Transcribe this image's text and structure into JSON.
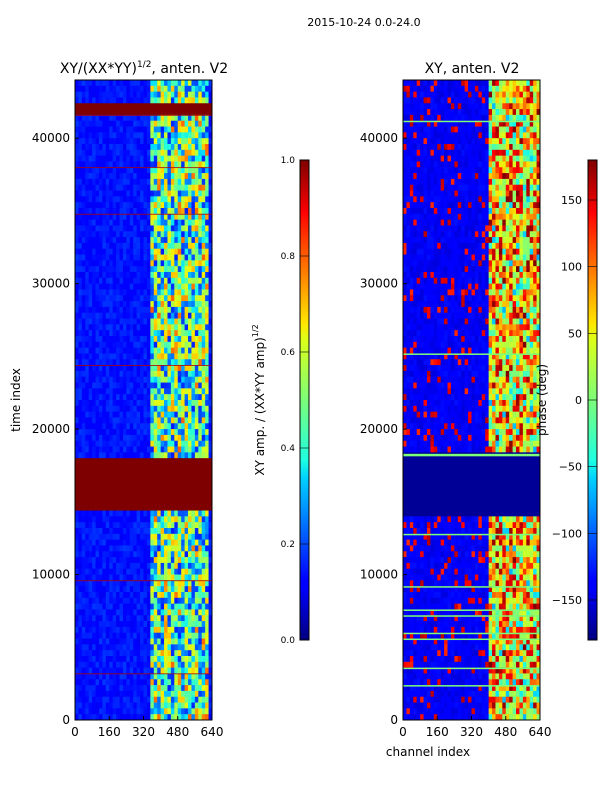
{
  "suptitle": "2015-10-24 0.0-24.0",
  "chart_data": [
    {
      "type": "heatmap",
      "title": "XY/(XX*YY)^(1/2), anten. V2",
      "title_main": "XY/(XX*YY)",
      "title_exp": "1/2",
      "title_tail": ", anten. V2",
      "xlabel": "",
      "ylabel": "time index",
      "xlim": [
        0,
        640
      ],
      "ylim": [
        0,
        44000
      ],
      "xticks": [
        0,
        160,
        320,
        480,
        640
      ],
      "yticks": [
        0,
        10000,
        20000,
        30000,
        40000
      ],
      "colorbar": {
        "label": "XY amp. / (XX*YY amp)^(1/2)",
        "label_main": "XY amp. / (XX*YY amp)",
        "label_exp": "1/2",
        "range": [
          0.0,
          1.0
        ],
        "ticks": [
          "0.0",
          "0.2",
          "0.4",
          "0.6",
          "0.8",
          "1.0"
        ]
      },
      "full_red_time_bands": [
        [
          14400,
          18200
        ],
        [
          41800,
          42300
        ]
      ],
      "active_channel_range": [
        360,
        620
      ]
    },
    {
      "type": "heatmap",
      "title": "XY, anten. V2",
      "xlabel": "channel index",
      "ylabel": "",
      "xlim": [
        0,
        640
      ],
      "ylim": [
        0,
        44000
      ],
      "xticks": [
        0,
        160,
        320,
        480,
        640
      ],
      "yticks": [
        0,
        10000,
        20000,
        30000,
        40000
      ],
      "colorbar": {
        "label": "phase (deg)",
        "range": [
          -180,
          180
        ],
        "ticks": [
          "−150",
          "−100",
          "−50",
          "0",
          "50",
          "100",
          "150"
        ]
      },
      "dark_time_band": [
        14200,
        18300
      ],
      "active_channel_range": [
        400,
        640
      ]
    }
  ]
}
